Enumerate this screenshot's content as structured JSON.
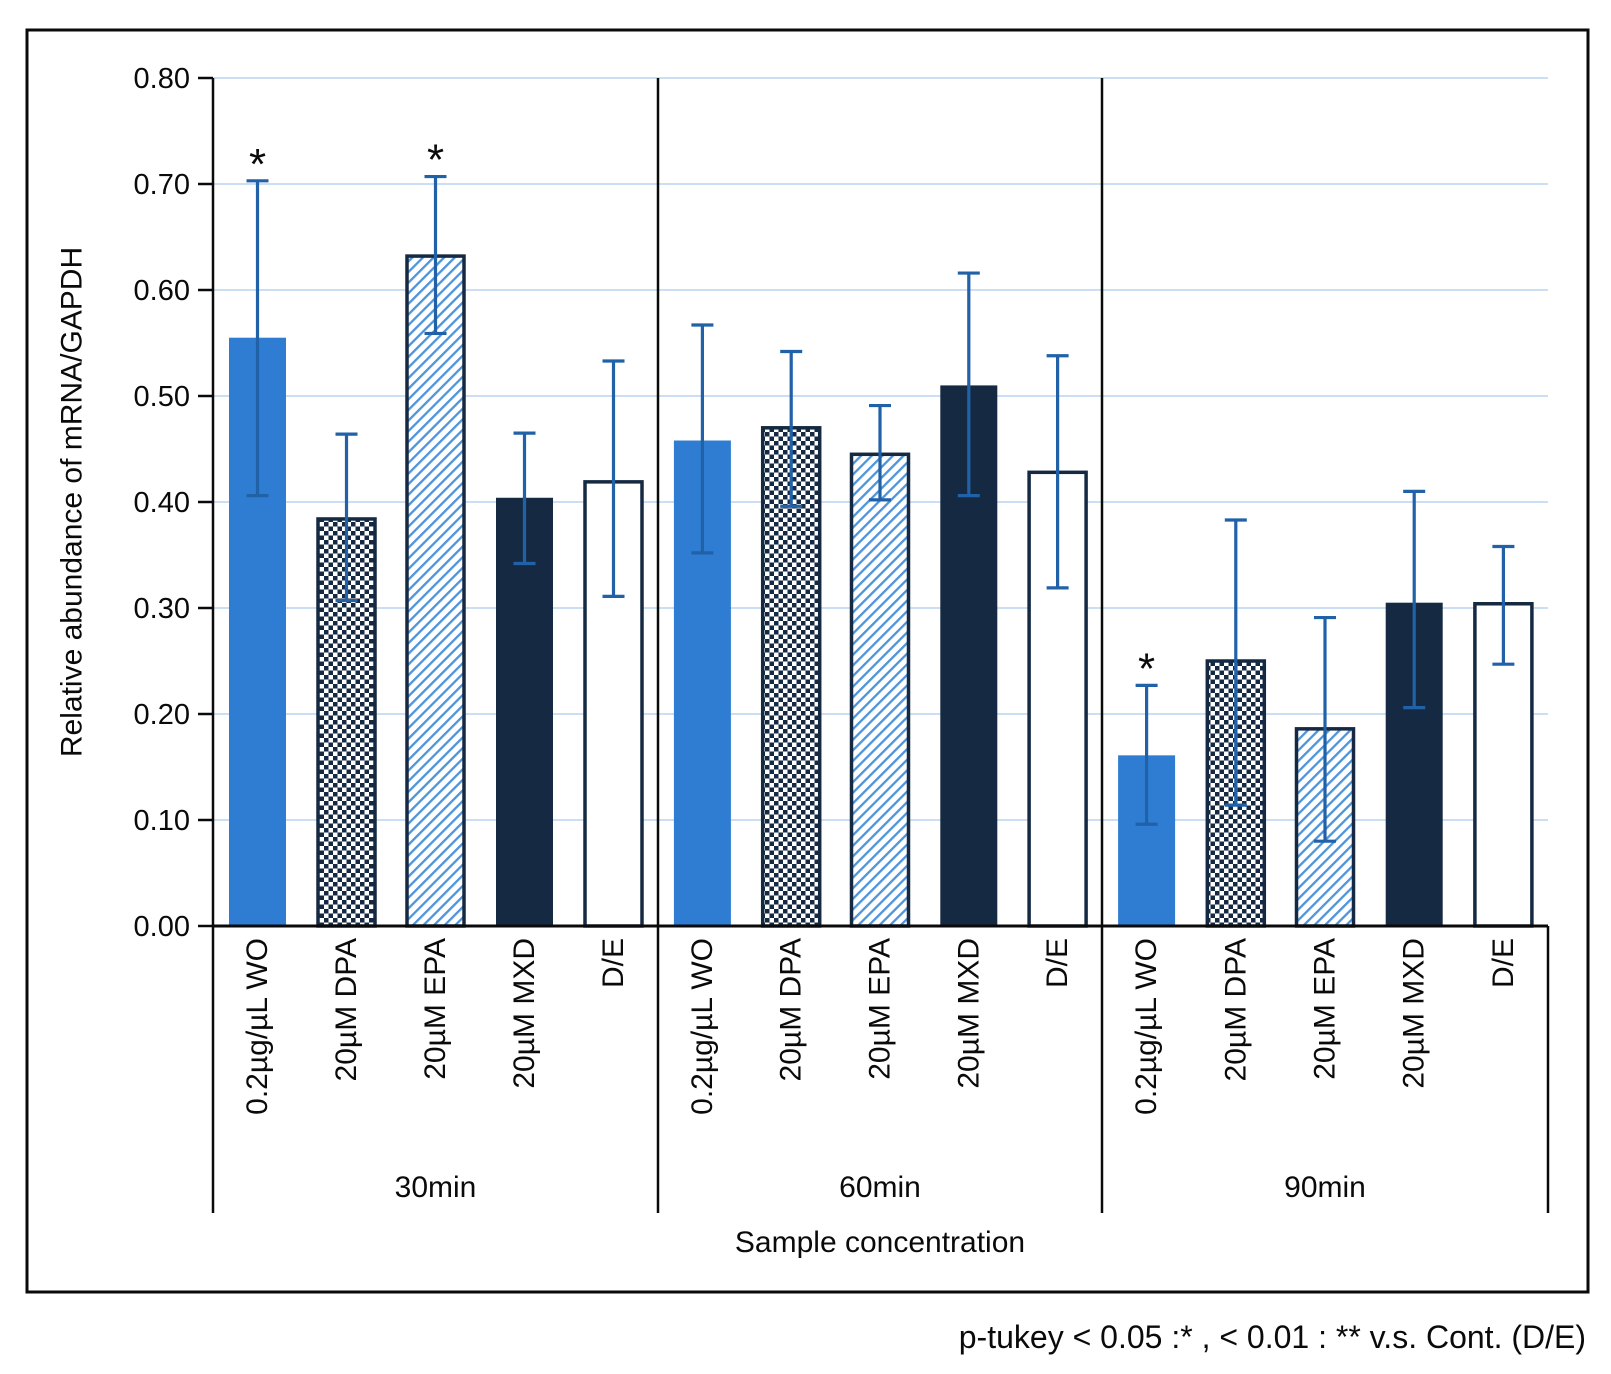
{
  "figure": {
    "caption": "p-tukey < 0.05 :*  , < 0.01 : **  v.s. Cont. (D/E)"
  },
  "colors": {
    "bar_blue": "#2E7DD2",
    "bar_navy": "#152A42",
    "error_bar": "#2061A8",
    "gridline": "#CBDEF4",
    "hatch_blue": "#4E94DB",
    "axis": "#0A0A0A",
    "asterisk": "#262626",
    "background": "#FFFFFF"
  },
  "chart_data": {
    "type": "bar",
    "title": "",
    "ylabel": "Relative abundance of mRNA/GAPDH",
    "xlabel": "Sample concentration",
    "ylim": [
      0.0,
      0.8
    ],
    "ytick_step": 0.1,
    "grid": true,
    "legend": "none",
    "significance_note": "p-tukey < 0.05 :*  , < 0.01 : **  v.s. Cont. (D/E)",
    "categories": [
      "0.2µg/µL WO",
      "20µM DPA",
      "20µM EPA",
      "20µM MXD",
      "D/E"
    ],
    "bar_styles": [
      {
        "name": "solid-light-blue",
        "fill": "#2E7DD2",
        "stroke": null
      },
      {
        "name": "checkerboard",
        "fill": "url(#pat-checker)",
        "stroke": "#152A42"
      },
      {
        "name": "diagonal-hatch",
        "fill": "url(#pat-hatch)",
        "stroke": "#152A42"
      },
      {
        "name": "solid-navy",
        "fill": "#152A42",
        "stroke": null
      },
      {
        "name": "white-outline",
        "fill": "#FFFFFF",
        "stroke": "#152A42"
      }
    ],
    "groups": [
      {
        "label": "30min",
        "bars": [
          {
            "category": "0.2µg/µL WO",
            "value": 0.555,
            "err_low": 0.406,
            "err_high": 0.703,
            "sig": "*"
          },
          {
            "category": "20µM DPA",
            "value": 0.384,
            "err_low": 0.307,
            "err_high": 0.464,
            "sig": ""
          },
          {
            "category": "20µM EPA",
            "value": 0.632,
            "err_low": 0.559,
            "err_high": 0.707,
            "sig": "*"
          },
          {
            "category": "20µM MXD",
            "value": 0.404,
            "err_low": 0.342,
            "err_high": 0.465,
            "sig": ""
          },
          {
            "category": "D/E",
            "value": 0.419,
            "err_low": 0.311,
            "err_high": 0.533,
            "sig": ""
          }
        ]
      },
      {
        "label": "60min",
        "bars": [
          {
            "category": "0.2µg/µL WO",
            "value": 0.458,
            "err_low": 0.352,
            "err_high": 0.567,
            "sig": ""
          },
          {
            "category": "20µM DPA",
            "value": 0.47,
            "err_low": 0.396,
            "err_high": 0.542,
            "sig": ""
          },
          {
            "category": "20µM EPA",
            "value": 0.445,
            "err_low": 0.402,
            "err_high": 0.491,
            "sig": ""
          },
          {
            "category": "20µM MXD",
            "value": 0.51,
            "err_low": 0.406,
            "err_high": 0.616,
            "sig": ""
          },
          {
            "category": "D/E",
            "value": 0.428,
            "err_low": 0.319,
            "err_high": 0.538,
            "sig": ""
          }
        ]
      },
      {
        "label": "90min",
        "bars": [
          {
            "category": "0.2µg/µL WO",
            "value": 0.161,
            "err_low": 0.096,
            "err_high": 0.227,
            "sig": "*"
          },
          {
            "category": "20µM DPA",
            "value": 0.25,
            "err_low": 0.114,
            "err_high": 0.383,
            "sig": ""
          },
          {
            "category": "20µM EPA",
            "value": 0.186,
            "err_low": 0.08,
            "err_high": 0.291,
            "sig": ""
          },
          {
            "category": "20µM MXD",
            "value": 0.305,
            "err_low": 0.206,
            "err_high": 0.41,
            "sig": ""
          },
          {
            "category": "D/E",
            "value": 0.304,
            "err_low": 0.247,
            "err_high": 0.358,
            "sig": ""
          }
        ]
      }
    ]
  }
}
